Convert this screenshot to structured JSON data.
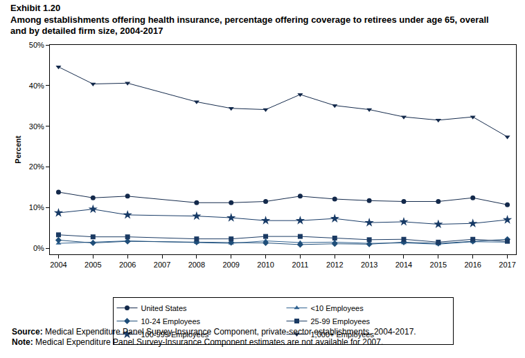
{
  "chart_data": {
    "type": "line",
    "title": "Exhibit 1.20",
    "subtitle": [
      "Among establishments offering health insurance, percentage offering coverage to retirees under age 65, overall",
      "and by detailed firm size, 2004-2017"
    ],
    "y_label": "Percent",
    "x": [
      2004,
      2005,
      2006,
      2008,
      2009,
      2010,
      2011,
      2012,
      2013,
      2014,
      2015,
      2016,
      2017
    ],
    "series": [
      {
        "name": "United States",
        "color": "#13294b",
        "marker": "circle",
        "values": [
          13.8,
          12.4,
          12.8,
          11.2,
          11.2,
          11.5,
          12.8,
          12.1,
          11.7,
          11.5,
          11.5,
          12.4,
          10.7
        ]
      },
      {
        "name": "<10 Employees",
        "color": "#2f6190",
        "marker": "triangle-up",
        "values": [
          1.2,
          1.5,
          1.8,
          1.4,
          1.2,
          1.8,
          1.4,
          1.5,
          1.2,
          1.3,
          1.0,
          1.6,
          1.5
        ]
      },
      {
        "name": "10-24 Employees",
        "color": "#1f4e79",
        "marker": "diamond",
        "values": [
          2.0,
          1.3,
          1.7,
          1.5,
          1.4,
          1.3,
          0.9,
          1.1,
          1.0,
          1.5,
          1.2,
          1.7,
          2.2
        ]
      },
      {
        "name": "25-99 Employees",
        "color": "#1a3a63",
        "marker": "square",
        "values": [
          3.3,
          2.8,
          2.8,
          2.3,
          2.3,
          2.9,
          2.9,
          2.5,
          2.1,
          2.2,
          1.5,
          2.2,
          1.7
        ]
      },
      {
        "name": "100-999 Employees",
        "color": "#173a66",
        "marker": "star",
        "values": [
          8.7,
          9.6,
          8.2,
          7.9,
          7.5,
          6.8,
          6.8,
          7.3,
          6.3,
          6.5,
          5.9,
          6.1,
          7.0
        ]
      },
      {
        "name": "1,000+ Employees",
        "color": "#13294b",
        "marker": "triangle-down",
        "values": [
          44.6,
          40.4,
          40.6,
          36.0,
          34.4,
          34.1,
          37.8,
          35.1,
          34.1,
          32.3,
          31.5,
          32.3,
          27.4
        ]
      }
    ],
    "xlim": [
      2003.75,
      2017.25
    ],
    "xticks": [
      2004,
      2005,
      2006,
      2007,
      2008,
      2009,
      2010,
      2011,
      2012,
      2013,
      2014,
      2015,
      2016,
      2017
    ],
    "ylim": [
      -1.5,
      50
    ],
    "yticks": [
      {
        "value": 0,
        "label": "0%"
      },
      {
        "value": 10,
        "label": "10%"
      },
      {
        "value": 20,
        "label": "20%"
      },
      {
        "value": 30,
        "label": "30%"
      },
      {
        "value": 40,
        "label": "40%"
      },
      {
        "value": 50,
        "label": "50%"
      }
    ],
    "grid": false,
    "legend": "bottom",
    "annotations": [
      {
        "label": "Source:",
        "text": "Medical Expenditure Panel Survey-Insurance Component, private-sector establishments, 2004-2017."
      },
      {
        "label": "Note:",
        "text": "Medical Expenditure Panel Survey-Insurance Component estimates are not available for 2007."
      }
    ]
  }
}
